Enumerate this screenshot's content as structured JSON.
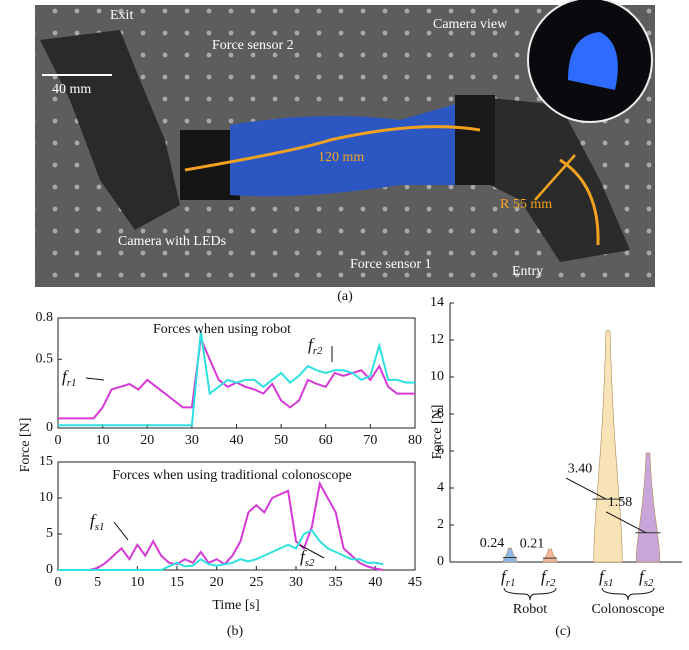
{
  "photo": {
    "labels": [
      "Exit",
      "Force sensor 2",
      "40 mm",
      "Camera view",
      "120 mm",
      "R 55 mm",
      "Camera with LEDs",
      "Force sensor 1",
      "Entry"
    ]
  },
  "captions": [
    "(a)",
    "(b)",
    "(c)"
  ],
  "chart_data": [
    {
      "type": "line",
      "title": "Forces when using robot",
      "ylabel": "Force [N]",
      "x": [
        0,
        2,
        4,
        6,
        8,
        10,
        12,
        14,
        16,
        18,
        20,
        22,
        24,
        26,
        28,
        30,
        32,
        34,
        36,
        38,
        40,
        42,
        44,
        46,
        48,
        50,
        52,
        54,
        56,
        58,
        60,
        62,
        64,
        66,
        68,
        70,
        72,
        74,
        76,
        78,
        80
      ],
      "series": [
        {
          "name": "fr1",
          "color": "#d63ad6",
          "values": [
            0.07,
            0.07,
            0.07,
            0.07,
            0.07,
            0.15,
            0.28,
            0.3,
            0.32,
            0.28,
            0.35,
            0.3,
            0.25,
            0.2,
            0.15,
            0.15,
            0.65,
            0.5,
            0.35,
            0.3,
            0.33,
            0.3,
            0.28,
            0.25,
            0.32,
            0.2,
            0.15,
            0.2,
            0.35,
            0.32,
            0.3,
            0.4,
            0.38,
            0.4,
            0.42,
            0.35,
            0.45,
            0.3,
            0.25,
            0.25,
            0.25
          ]
        },
        {
          "name": "fr2",
          "color": "#2ee0e0",
          "values": [
            0.02,
            0.02,
            0.02,
            0.02,
            0.02,
            0.02,
            0.02,
            0.02,
            0.02,
            0.02,
            0.02,
            0.02,
            0.02,
            0.02,
            0.02,
            0.02,
            0.7,
            0.25,
            0.3,
            0.35,
            0.33,
            0.35,
            0.35,
            0.3,
            0.35,
            0.4,
            0.33,
            0.38,
            0.45,
            0.42,
            0.4,
            0.42,
            0.42,
            0.4,
            0.35,
            0.38,
            0.6,
            0.35,
            0.35,
            0.33,
            0.33
          ]
        }
      ],
      "xlim": [
        0,
        80
      ],
      "xticks": [
        0,
        10,
        20,
        30,
        40,
        50,
        60,
        70,
        80
      ],
      "ylim": [
        0,
        0.8
      ],
      "yticks": [
        0,
        0.5,
        0.8
      ]
    },
    {
      "type": "line",
      "title": "Forces when using traditional colonoscope",
      "xlabel": "Time [s]",
      "x": [
        0,
        1,
        2,
        3,
        4,
        5,
        6,
        7,
        8,
        9,
        10,
        11,
        12,
        13,
        14,
        15,
        16,
        17,
        18,
        19,
        20,
        21,
        22,
        23,
        24,
        25,
        26,
        27,
        28,
        29,
        30,
        31,
        32,
        33,
        34,
        35,
        36,
        37,
        38,
        39,
        40,
        41
      ],
      "series": [
        {
          "name": "fs1",
          "color": "#d63ad6",
          "values": [
            0,
            0,
            0,
            0,
            0,
            0.3,
            1,
            2,
            3,
            1.5,
            3.5,
            2,
            4,
            2,
            1,
            0.8,
            1.5,
            1,
            2.5,
            1,
            1.5,
            0.8,
            2,
            4,
            8,
            9,
            8,
            10,
            10.5,
            11,
            4,
            3,
            6,
            12,
            10,
            8,
            3,
            2,
            1,
            0.5,
            0.2,
            0
          ]
        },
        {
          "name": "fs2",
          "color": "#2ee0e0",
          "values": [
            0,
            0,
            0,
            0,
            0,
            0,
            0,
            0,
            0,
            0,
            0,
            0,
            0,
            0,
            0.5,
            1,
            0.5,
            0.6,
            1.5,
            0.8,
            0.6,
            0.8,
            1,
            1.5,
            1.2,
            1.5,
            2,
            2.5,
            3,
            3.5,
            3,
            5,
            5.5,
            4,
            3,
            2.5,
            2,
            1.5,
            1.5,
            1,
            1,
            0.8
          ]
        }
      ],
      "xlim": [
        0,
        45
      ],
      "xticks": [
        0,
        5,
        10,
        15,
        20,
        25,
        30,
        35,
        40,
        45
      ],
      "ylim": [
        0,
        15
      ],
      "yticks": [
        0,
        5,
        10,
        15
      ]
    },
    {
      "type": "violin",
      "ylabel": "Force [N]",
      "categories": [
        "fr1",
        "fr2",
        "fs1",
        "fs2"
      ],
      "groups": [
        "Robot",
        "Colonoscope"
      ],
      "colors": [
        "#8fb8e8",
        "#f2b79a",
        "#f7e3b5",
        "#c9a6d9"
      ],
      "values": [
        0.24,
        0.21,
        3.4,
        1.58
      ],
      "value_labels": [
        "0.24",
        "0.21",
        "3.40",
        "1.58"
      ],
      "maxima": [
        0.75,
        0.7,
        12.5,
        5.9
      ],
      "ylim": [
        0,
        14
      ],
      "yticks": [
        0,
        2,
        4,
        6,
        8,
        10,
        12,
        14
      ]
    }
  ]
}
